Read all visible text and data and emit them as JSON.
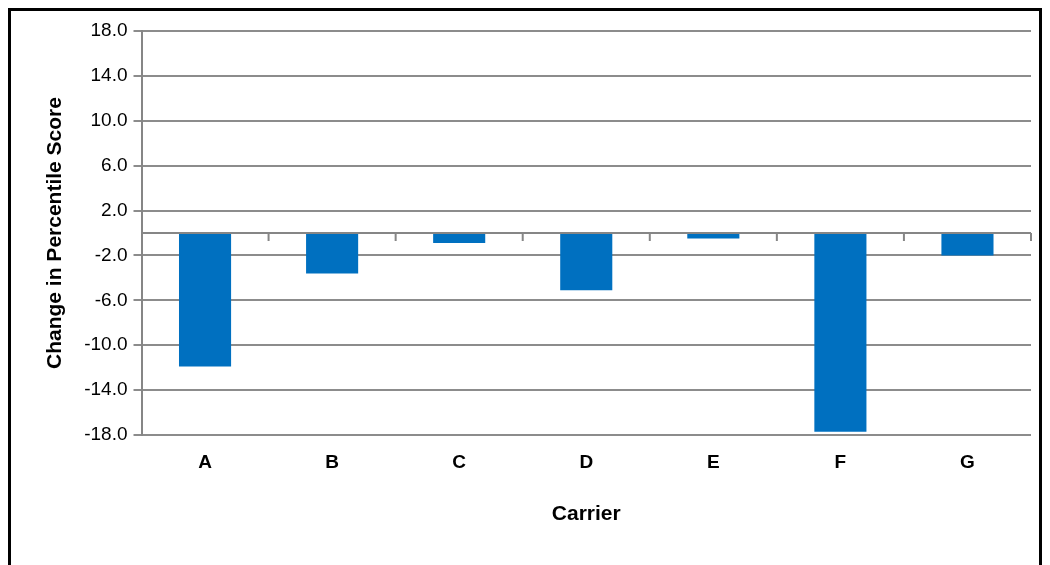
{
  "chart_data": {
    "type": "bar",
    "xlabel": "Carrier",
    "ylabel": "Change in Percentile Score",
    "categories": [
      "A",
      "B",
      "C",
      "D",
      "E",
      "F",
      "G"
    ],
    "values": [
      -11.9,
      -3.6,
      -0.9,
      -5.1,
      -0.5,
      -17.7,
      -2.0
    ],
    "color": "#0070c0",
    "ylim": [
      -18,
      18
    ],
    "yticks": [
      {
        "value": -18,
        "label": "-18.0"
      },
      {
        "value": -14,
        "label": "-14.0"
      },
      {
        "value": -10,
        "label": "-10.0"
      },
      {
        "value": -6,
        "label": "-6.0"
      },
      {
        "value": -2,
        "label": "-2.0"
      },
      {
        "value": 2,
        "label": "2.0"
      },
      {
        "value": 6,
        "label": "6.0"
      },
      {
        "value": 10,
        "label": "10.0"
      },
      {
        "value": 14,
        "label": "14.0"
      },
      {
        "value": 18,
        "label": "18.0"
      }
    ],
    "grid": "y"
  }
}
